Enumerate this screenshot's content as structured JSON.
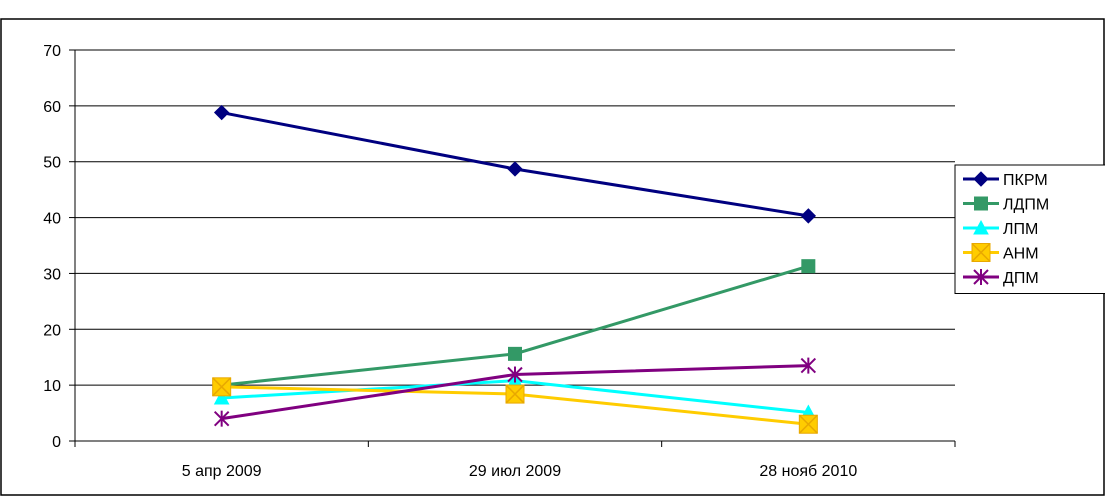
{
  "chart_data": {
    "type": "line",
    "title": "",
    "xlabel": "",
    "ylabel": "",
    "categories": [
      "5 апр 2009",
      "29 июл 2009",
      "28 нояб 2010"
    ],
    "ylim": [
      0,
      70
    ],
    "yticks": [
      0,
      10,
      20,
      30,
      40,
      50,
      60,
      70
    ],
    "grid": "horizontal",
    "legend_position": "right",
    "series": [
      {
        "name": "ПКРМ",
        "values": [
          58.8,
          48.7,
          40.3
        ],
        "color": "#000080",
        "marker": "diamond"
      },
      {
        "name": "ЛДПМ",
        "values": [
          10.0,
          15.6,
          31.3
        ],
        "color": "#339966",
        "marker": "square"
      },
      {
        "name": "ЛПМ",
        "values": [
          7.7,
          10.8,
          5.1
        ],
        "color": "#00FFFF",
        "marker": "triangle"
      },
      {
        "name": "АНМ",
        "values": [
          9.7,
          8.4,
          3.0
        ],
        "color": "#FFCC00",
        "marker": "x-square"
      },
      {
        "name": "ДПМ",
        "values": [
          4.0,
          11.9,
          13.5
        ],
        "color": "#800080",
        "marker": "star"
      }
    ]
  }
}
